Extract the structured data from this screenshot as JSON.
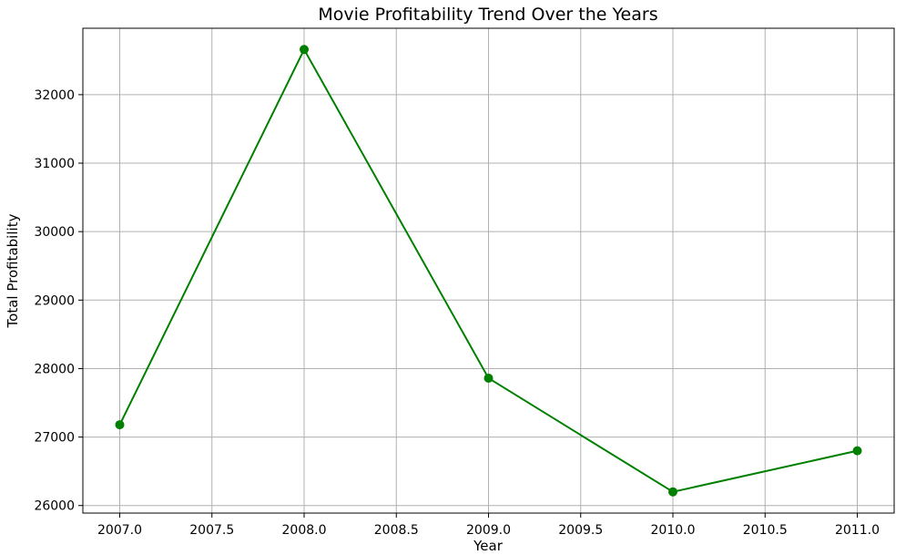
{
  "chart_data": {
    "type": "line",
    "title": "Movie Profitability Trend Over the Years",
    "xlabel": "Year",
    "ylabel": "Total Profitability",
    "x": [
      2007,
      2008,
      2009,
      2010,
      2011
    ],
    "series": [
      {
        "values": [
          27180,
          32660,
          27860,
          26200,
          26800
        ]
      }
    ],
    "xlim": [
      2006.8,
      2011.2
    ],
    "ylim": [
      25890,
      32970
    ],
    "xticks": [
      2007.0,
      2007.5,
      2008.0,
      2008.5,
      2009.0,
      2009.5,
      2010.0,
      2010.5,
      2011.0
    ],
    "xtick_labels": [
      "2007.0",
      "2007.5",
      "2008.0",
      "2008.5",
      "2009.0",
      "2009.5",
      "2010.0",
      "2010.5",
      "2011.0"
    ],
    "yticks": [
      26000,
      27000,
      28000,
      29000,
      30000,
      31000,
      32000
    ],
    "ytick_labels": [
      "26000",
      "27000",
      "28000",
      "29000",
      "30000",
      "31000",
      "32000"
    ],
    "grid": true,
    "marker": "circle",
    "color": "#008000",
    "grid_color": "#b0b0b0"
  }
}
